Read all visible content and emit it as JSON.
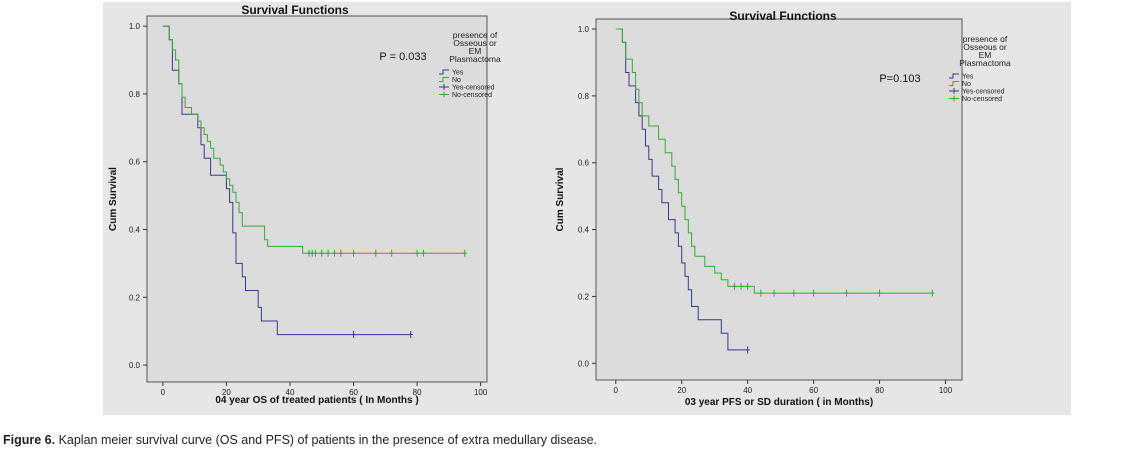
{
  "caption": {
    "label": "Figure 6.",
    "text": " Kaplan meier survival curve (OS and PFS) of patients in the presence of extra medullary disease."
  },
  "colors": {
    "yes": "#39398a",
    "no": "#3aa83a",
    "panel_bg": "#e6e6e6",
    "plot_bg": "#dcdcdc"
  },
  "chart_data": [
    {
      "type": "line",
      "subtype": "kaplan-meier",
      "title": "Survival Functions",
      "xlabel": "04 year OS of treated patients ( In Months )",
      "ylabel": "Cum Survival",
      "xlim": [
        -5,
        102
      ],
      "ylim": [
        -0.05,
        1.03
      ],
      "xticks": [
        0,
        20,
        40,
        60,
        80,
        100
      ],
      "yticks": [
        0.0,
        0.2,
        0.4,
        0.6,
        0.8,
        1.0
      ],
      "ytick_labels": [
        "0.0",
        "0.2",
        "0.4",
        "0.6",
        "0.8",
        "1.0"
      ],
      "annotation": "P = 0.033",
      "legend": {
        "title": [
          "presence of",
          "Osseous or",
          "EM",
          "Plasmactoma"
        ],
        "entries": [
          "Yes",
          "No",
          "Yes-censored",
          "No-censored"
        ],
        "placement": "right"
      },
      "series": [
        {
          "name": "Yes",
          "color": "#39398a",
          "steps": [
            [
              0,
              1.0
            ],
            [
              2,
              0.96
            ],
            [
              3,
              0.87
            ],
            [
              5,
              0.83
            ],
            [
              6,
              0.74
            ],
            [
              10,
              0.74
            ],
            [
              11,
              0.7
            ],
            [
              12,
              0.65
            ],
            [
              13,
              0.61
            ],
            [
              15,
              0.56
            ],
            [
              20,
              0.52
            ],
            [
              21,
              0.48
            ],
            [
              22,
              0.39
            ],
            [
              23,
              0.3
            ],
            [
              25,
              0.26
            ],
            [
              26,
              0.22
            ],
            [
              30,
              0.17
            ],
            [
              31,
              0.13
            ],
            [
              36,
              0.09
            ],
            [
              78,
              0.09
            ]
          ],
          "censored": [
            [
              60,
              0.09
            ],
            [
              78,
              0.09
            ]
          ]
        },
        {
          "name": "No",
          "color": "#3aa83a",
          "steps": [
            [
              0,
              1.0
            ],
            [
              2,
              0.96
            ],
            [
              3,
              0.93
            ],
            [
              4,
              0.9
            ],
            [
              5,
              0.83
            ],
            [
              6,
              0.79
            ],
            [
              7,
              0.76
            ],
            [
              9,
              0.74
            ],
            [
              11,
              0.72
            ],
            [
              12,
              0.7
            ],
            [
              13,
              0.68
            ],
            [
              14,
              0.66
            ],
            [
              15,
              0.64
            ],
            [
              16,
              0.61
            ],
            [
              18,
              0.59
            ],
            [
              19,
              0.57
            ],
            [
              20,
              0.55
            ],
            [
              21,
              0.53
            ],
            [
              22,
              0.51
            ],
            [
              23,
              0.48
            ],
            [
              24,
              0.45
            ],
            [
              25,
              0.41
            ],
            [
              32,
              0.37
            ],
            [
              33,
              0.35
            ],
            [
              44,
              0.33
            ],
            [
              95,
              0.33
            ]
          ],
          "censored": [
            [
              46,
              0.33
            ],
            [
              47,
              0.33
            ],
            [
              48,
              0.33
            ],
            [
              50,
              0.33
            ],
            [
              52,
              0.33
            ],
            [
              54,
              0.33
            ],
            [
              56,
              0.33
            ],
            [
              60,
              0.33
            ],
            [
              67,
              0.33
            ],
            [
              72,
              0.33
            ],
            [
              80,
              0.33
            ],
            [
              82,
              0.33
            ],
            [
              95,
              0.33
            ]
          ]
        }
      ]
    },
    {
      "type": "line",
      "subtype": "kaplan-meier",
      "title": "Survival Functions",
      "xlabel": "03 year PFS or SD duration ( in Months)",
      "ylabel": "Cum Survival",
      "xlim": [
        -6,
        105
      ],
      "ylim": [
        -0.05,
        1.03
      ],
      "xticks": [
        0,
        20,
        40,
        60,
        80,
        100
      ],
      "yticks": [
        0.0,
        0.2,
        0.4,
        0.6,
        0.8,
        1.0
      ],
      "ytick_labels": [
        "0.0",
        "0.2",
        "0.4",
        "0.6",
        "0.8",
        "1.0"
      ],
      "annotation": "P=0.103",
      "legend": {
        "title": [
          "presence of",
          "Osseous or",
          "EM",
          "Plasmactoma"
        ],
        "entries": [
          "Yes",
          "No",
          "Yes-censored",
          "No-censored"
        ],
        "placement": "right"
      },
      "series": [
        {
          "name": "Yes",
          "color": "#39398a",
          "steps": [
            [
              0,
              1.0
            ],
            [
              2,
              0.96
            ],
            [
              3,
              0.87
            ],
            [
              4,
              0.83
            ],
            [
              6,
              0.78
            ],
            [
              7,
              0.74
            ],
            [
              8,
              0.7
            ],
            [
              9,
              0.65
            ],
            [
              10,
              0.61
            ],
            [
              11,
              0.56
            ],
            [
              13,
              0.52
            ],
            [
              14,
              0.48
            ],
            [
              16,
              0.43
            ],
            [
              18,
              0.39
            ],
            [
              19,
              0.35
            ],
            [
              20,
              0.3
            ],
            [
              21,
              0.26
            ],
            [
              22,
              0.22
            ],
            [
              23,
              0.17
            ],
            [
              25,
              0.13
            ],
            [
              32,
              0.09
            ],
            [
              34,
              0.04
            ],
            [
              40,
              0.04
            ]
          ],
          "censored": [
            [
              40,
              0.04
            ]
          ]
        },
        {
          "name": "No",
          "color": "#3aa83a",
          "steps": [
            [
              0,
              1.0
            ],
            [
              2,
              0.96
            ],
            [
              3,
              0.91
            ],
            [
              5,
              0.87
            ],
            [
              6,
              0.82
            ],
            [
              7,
              0.78
            ],
            [
              8,
              0.74
            ],
            [
              10,
              0.71
            ],
            [
              13,
              0.67
            ],
            [
              15,
              0.63
            ],
            [
              17,
              0.59
            ],
            [
              18,
              0.55
            ],
            [
              19,
              0.51
            ],
            [
              20,
              0.47
            ],
            [
              21,
              0.43
            ],
            [
              22,
              0.39
            ],
            [
              23,
              0.35
            ],
            [
              24,
              0.32
            ],
            [
              27,
              0.29
            ],
            [
              30,
              0.27
            ],
            [
              32,
              0.25
            ],
            [
              34,
              0.23
            ],
            [
              42,
              0.21
            ],
            [
              96,
              0.21
            ]
          ],
          "censored": [
            [
              36,
              0.23
            ],
            [
              38,
              0.23
            ],
            [
              40,
              0.23
            ],
            [
              44,
              0.21
            ],
            [
              48,
              0.21
            ],
            [
              54,
              0.21
            ],
            [
              60,
              0.21
            ],
            [
              70,
              0.21
            ],
            [
              80,
              0.21
            ],
            [
              96,
              0.21
            ]
          ]
        }
      ]
    }
  ]
}
